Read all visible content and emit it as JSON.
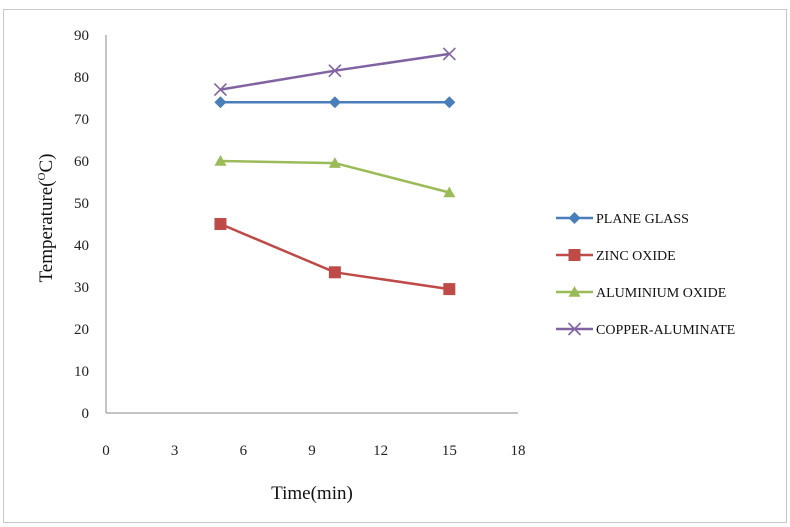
{
  "chart_data": {
    "type": "line",
    "xlabel": "Time(min)",
    "ylabel_prefix": "Temperature(",
    "ylabel_sup": "O",
    "ylabel_suffix": "C)",
    "xlim": [
      0,
      18
    ],
    "ylim": [
      0,
      90
    ],
    "xticks": [
      0,
      3,
      6,
      9,
      12,
      15,
      18
    ],
    "yticks": [
      0,
      10,
      20,
      30,
      40,
      50,
      60,
      70,
      80,
      90
    ],
    "grid": false,
    "legend_position": "right",
    "x": [
      5,
      10,
      15
    ],
    "series": [
      {
        "name": "PLANE GLASS",
        "values": [
          74,
          74,
          74
        ],
        "color": "#4a7ebb",
        "marker": "diamond"
      },
      {
        "name": "ZINC OXIDE",
        "values": [
          45,
          33.5,
          29.5
        ],
        "color": "#be4b48",
        "marker": "square"
      },
      {
        "name": "ALUMINIUM OXIDE",
        "values": [
          60,
          59.5,
          52.5
        ],
        "color": "#9bbb59",
        "marker": "triangle"
      },
      {
        "name": "COPPER-ALUMINATE",
        "values": [
          77,
          81.5,
          85.5
        ],
        "color": "#8064a2",
        "marker": "x"
      }
    ]
  }
}
